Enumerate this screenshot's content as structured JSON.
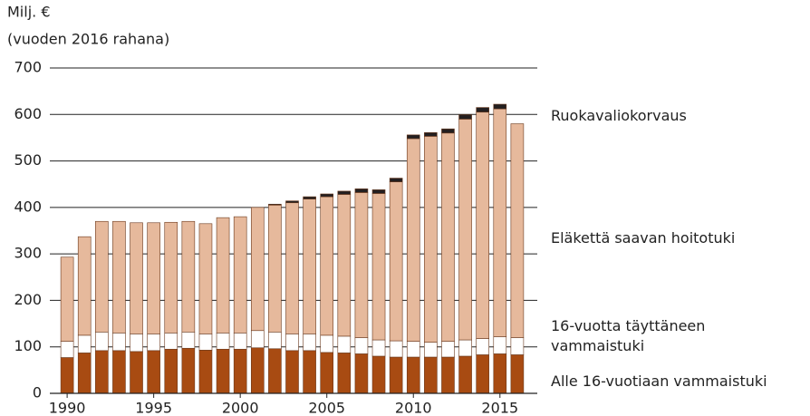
{
  "chart_data": {
    "type": "stacked_bar",
    "yaxis_label": [
      "Milj. €",
      "(vuoden 2016 rahana)"
    ],
    "x": [
      1990,
      1991,
      1992,
      1993,
      1994,
      1995,
      1996,
      1997,
      1998,
      1999,
      2000,
      2001,
      2002,
      2003,
      2004,
      2005,
      2006,
      2007,
      2008,
      2009,
      2010,
      2011,
      2012,
      2013,
      2014,
      2015,
      2016
    ],
    "xlim": [
      1989,
      2017
    ],
    "xticks": [
      1990,
      1995,
      2000,
      2005,
      2010,
      2015
    ],
    "ylim": [
      0,
      700
    ],
    "yticks": [
      0,
      100,
      200,
      300,
      400,
      500,
      600,
      700
    ],
    "grid": true,
    "series": [
      {
        "name": "Alle 16-vuotiaan vammaistuki",
        "color": "#a84b12",
        "values": [
          77,
          87,
          92,
          92,
          90,
          92,
          95,
          97,
          93,
          95,
          95,
          98,
          96,
          92,
          92,
          88,
          87,
          85,
          80,
          78,
          78,
          78,
          78,
          80,
          83,
          85,
          83
        ]
      },
      {
        "name": "16-vuotta täyttäneen vammaistuki",
        "color": "#ffffff",
        "values": [
          35,
          38,
          40,
          38,
          38,
          36,
          35,
          35,
          35,
          35,
          35,
          37,
          36,
          36,
          36,
          37,
          36,
          35,
          35,
          35,
          34,
          32,
          34,
          35,
          35,
          37,
          37
        ]
      },
      {
        "name": "Eläkettä saavan hoitotuki",
        "color": "#e6b99c",
        "values": [
          181,
          212,
          238,
          240,
          239,
          239,
          238,
          238,
          237,
          248,
          250,
          265,
          273,
          282,
          290,
          298,
          305,
          312,
          315,
          342,
          436,
          443,
          448,
          475,
          487,
          490,
          460
        ]
      },
      {
        "name": "Ruokavaliokorvaus",
        "color": "#231f20",
        "values": [
          0,
          0,
          0,
          0,
          0,
          0,
          0,
          0,
          0,
          0,
          0,
          0,
          2,
          4,
          5,
          6,
          7,
          8,
          8,
          8,
          8,
          8,
          9,
          9,
          10,
          10,
          0
        ]
      }
    ]
  }
}
